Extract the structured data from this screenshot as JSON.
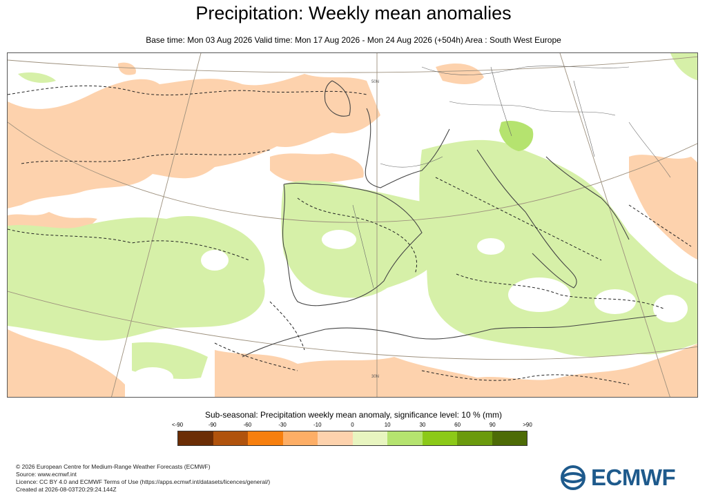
{
  "title": "Precipitation: Weekly mean anomalies",
  "subtitle": "Base time: Mon 03 Aug 2026 Valid time: Mon 17 Aug 2026 - Mon 24 Aug 2026 (+504h) Area : South West Europe",
  "map": {
    "area": "South West Europe",
    "grid_labels": [
      "50N",
      "30N"
    ],
    "colors": {
      "dry_anomaly_light": "#fdd2ad",
      "wet_anomaly_light": "#d6f0a8",
      "wet_anomaly_medium": "#b5e36f",
      "coastline": "#444444",
      "border": "#555555",
      "graticule": "#9c8f7c"
    }
  },
  "legend": {
    "title": "Sub-seasonal: Precipitation weekly mean anomaly, significance level: 10 % (mm)",
    "tick_labels": [
      "<-90",
      "-90",
      "-60",
      "-30",
      "-10",
      "0",
      "10",
      "30",
      "60",
      "90",
      ">90"
    ],
    "swatches": [
      "#6b2d05",
      "#b0530d",
      "#f77f0e",
      "#fdae66",
      "#fdd2ad",
      "#e8f5c0",
      "#b5e36f",
      "#8cc918",
      "#6b9a0d",
      "#4d6b06"
    ]
  },
  "footer": {
    "copyright": "© 2026 European Centre for Medium-Range Weather Forecasts (ECMWF)",
    "source": "Source: www.ecmwf.int",
    "licence": "Licence: CC BY 4.0 and ECMWF Terms of Use (https://apps.ecmwf.int/datasets/licences/general/)",
    "created": "Created at 2026-08-03T20:29:24.144Z"
  },
  "logo": {
    "text": "ECMWF",
    "color": "#1e5a8c"
  }
}
